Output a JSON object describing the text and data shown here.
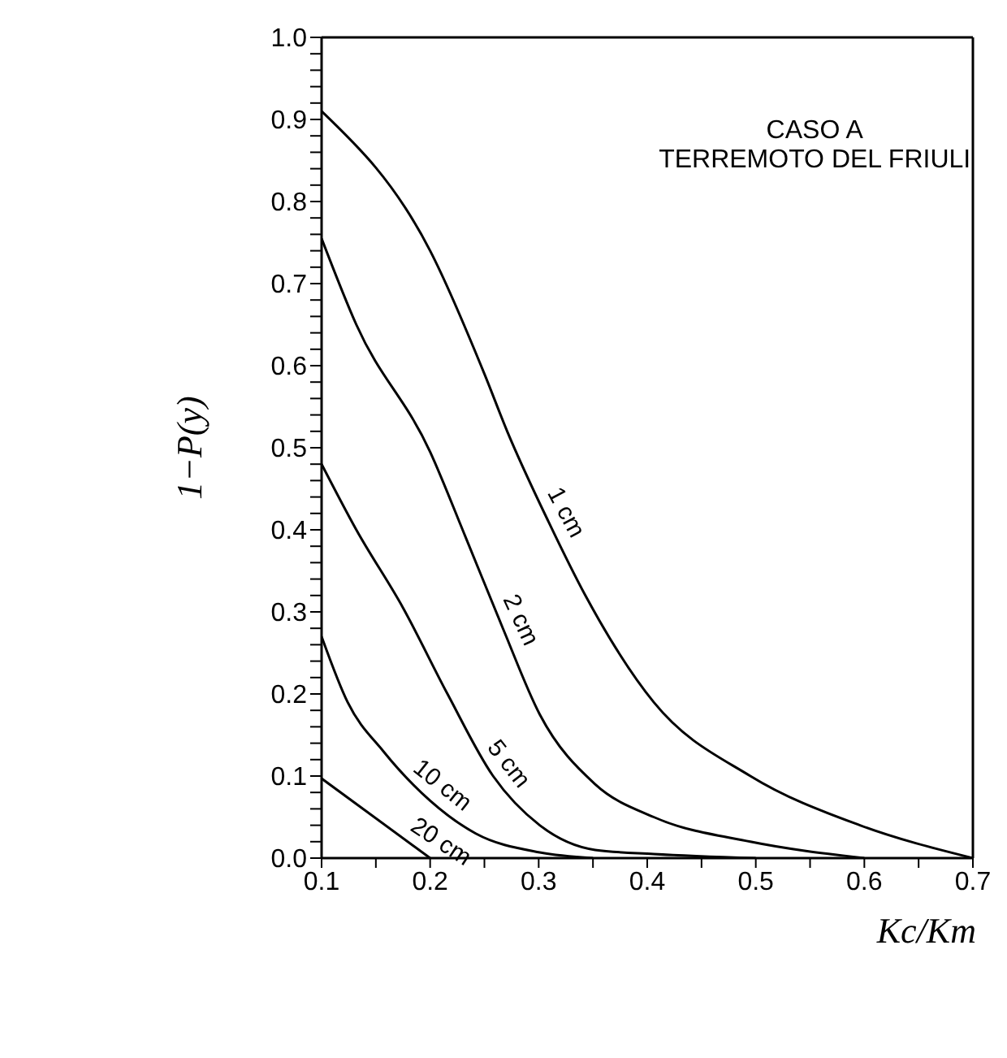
{
  "chart_data": {
    "type": "line",
    "xlabel": "Kc/Km",
    "ylabel": "1−P(y)",
    "annotations": [
      "CASO A",
      "TERREMOTO DEL FRIULI"
    ],
    "xlim": [
      0.1,
      0.7
    ],
    "ylim": [
      0,
      1
    ],
    "xticks": [
      0.1,
      {
        "value": 0.15,
        "label": null
      },
      0.2,
      {
        "value": 0.25,
        "label": null
      },
      0.3,
      {
        "value": 0.35,
        "label": null
      },
      0.4,
      {
        "value": 0.45,
        "label": null
      },
      0.5,
      {
        "value": 0.55,
        "label": null
      },
      0.6,
      {
        "value": 0.65,
        "label": null
      },
      0.7
    ],
    "yticks": [
      "0.0",
      {
        "value": 0.02,
        "label": null
      },
      {
        "value": 0.04,
        "label": null
      },
      {
        "value": 0.06,
        "label": null
      },
      {
        "value": 0.08,
        "label": null
      },
      {
        "value": 0.1,
        "label": "0.1"
      },
      {
        "value": 0.12,
        "label": null
      },
      {
        "value": 0.14,
        "label": null
      },
      {
        "value": 0.16,
        "label": null
      },
      {
        "value": 0.18,
        "label": null
      },
      {
        "value": 0.2,
        "label": "0.2"
      },
      {
        "value": 0.22,
        "label": null
      },
      {
        "value": 0.24,
        "label": null
      },
      {
        "value": 0.26,
        "label": null
      },
      {
        "value": 0.28,
        "label": null
      },
      {
        "value": 0.3,
        "label": "0.3"
      },
      {
        "value": 0.32,
        "label": null
      },
      {
        "value": 0.34,
        "label": null
      },
      {
        "value": 0.36,
        "label": null
      },
      {
        "value": 0.38,
        "label": null
      },
      {
        "value": 0.4,
        "label": "0.4"
      },
      {
        "value": 0.42,
        "label": null
      },
      {
        "value": 0.44,
        "label": null
      },
      {
        "value": 0.46,
        "label": null
      },
      {
        "value": 0.48,
        "label": null
      },
      {
        "value": 0.5,
        "label": "0.5"
      },
      {
        "value": 0.52,
        "label": null
      },
      {
        "value": 0.54,
        "label": null
      },
      {
        "value": 0.56,
        "label": null
      },
      {
        "value": 0.58,
        "label": null
      },
      {
        "value": 0.6,
        "label": "0.6"
      },
      {
        "value": 0.62,
        "label": null
      },
      {
        "value": 0.64,
        "label": null
      },
      {
        "value": 0.66,
        "label": null
      },
      {
        "value": 0.68,
        "label": null
      },
      {
        "value": 0.7,
        "label": "0.7"
      },
      {
        "value": 0.72,
        "label": null
      },
      {
        "value": 0.74,
        "label": null
      },
      {
        "value": 0.76,
        "label": null
      },
      {
        "value": 0.78,
        "label": null
      },
      {
        "value": 0.8,
        "label": "0.8"
      },
      {
        "value": 0.82,
        "label": null
      },
      {
        "value": 0.84,
        "label": null
      },
      {
        "value": 0.86,
        "label": null
      },
      {
        "value": 0.88,
        "label": null
      },
      {
        "value": 0.9,
        "label": "0.9"
      },
      {
        "value": 0.92,
        "label": null
      },
      {
        "value": 0.94,
        "label": null
      },
      {
        "value": 0.96,
        "label": null
      },
      {
        "value": 0.98,
        "label": null
      },
      {
        "value": 1,
        "label": "1.0"
      }
    ],
    "marker": "none",
    "line_style": "solid",
    "series": [
      {
        "name": "1 cm",
        "color": "#000000",
        "x": [
          0.1,
          0.2,
          0.25,
          0.271,
          0.309,
          0.343,
          0.406,
          0.495,
          0.596,
          0.7
        ],
        "values": [
          0.91,
          0.74,
          0.59,
          0.52,
          0.41,
          0.32,
          0.19,
          0.1,
          0.04,
          0
        ]
      },
      {
        "name": "2 cm",
        "color": "#000000",
        "x": [
          0.1,
          0.132,
          0.2,
          0.233,
          0.267,
          0.301,
          0.352,
          0.406,
          0.495,
          0.6
        ],
        "values": [
          0.755,
          0.65,
          0.495,
          0.39,
          0.28,
          0.175,
          0.09,
          0.05,
          0.02,
          0
        ]
      },
      {
        "name": "5 cm",
        "color": "#000000",
        "x": [
          0.1,
          0.132,
          0.175,
          0.216,
          0.258,
          0.301,
          0.352,
          0.406,
          0.5
        ],
        "values": [
          0.48,
          0.4,
          0.305,
          0.2,
          0.1,
          0.04,
          0.01,
          0.005,
          0
        ]
      },
      {
        "name": "10 cm",
        "color": "#000000",
        "x": [
          0.1,
          0.124,
          0.157,
          0.2,
          0.242,
          0.301,
          0.35
        ],
        "values": [
          0.27,
          0.19,
          0.13,
          0.07,
          0.03,
          0.007,
          0
        ]
      },
      {
        "name": "20 cm",
        "color": "#000000",
        "x": [
          0.1,
          0.2
        ],
        "values": [
          0.097,
          0
        ]
      }
    ]
  }
}
